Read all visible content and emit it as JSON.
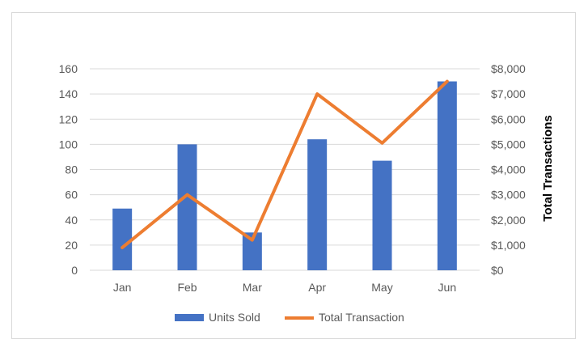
{
  "chart_data": {
    "type": "bar",
    "categories": [
      "Jan",
      "Feb",
      "Mar",
      "Apr",
      "May",
      "Jun"
    ],
    "series": [
      {
        "name": "Units Sold",
        "type": "bar",
        "axis": "left",
        "color": "#4472C4",
        "values": [
          49,
          100,
          30,
          104,
          87,
          150
        ]
      },
      {
        "name": "Total Transaction",
        "type": "line",
        "axis": "right",
        "color": "#ED7D31",
        "values": [
          900,
          3000,
          1200,
          7000,
          5050,
          7500
        ]
      }
    ],
    "y_left": {
      "min": 0,
      "max": 160,
      "step": 20,
      "tick_labels": [
        "0",
        "20",
        "40",
        "60",
        "80",
        "100",
        "120",
        "140",
        "160"
      ]
    },
    "y_right": {
      "label": "Total Transactions",
      "min": 0,
      "max": 8000,
      "step": 1000,
      "tick_labels": [
        "$0",
        "$1,000",
        "$2,000",
        "$3,000",
        "$4,000",
        "$5,000",
        "$6,000",
        "$7,000",
        "$8,000"
      ]
    },
    "title": "",
    "xlabel": "",
    "ylabel": "",
    "grid": true,
    "legend_position": "bottom"
  }
}
